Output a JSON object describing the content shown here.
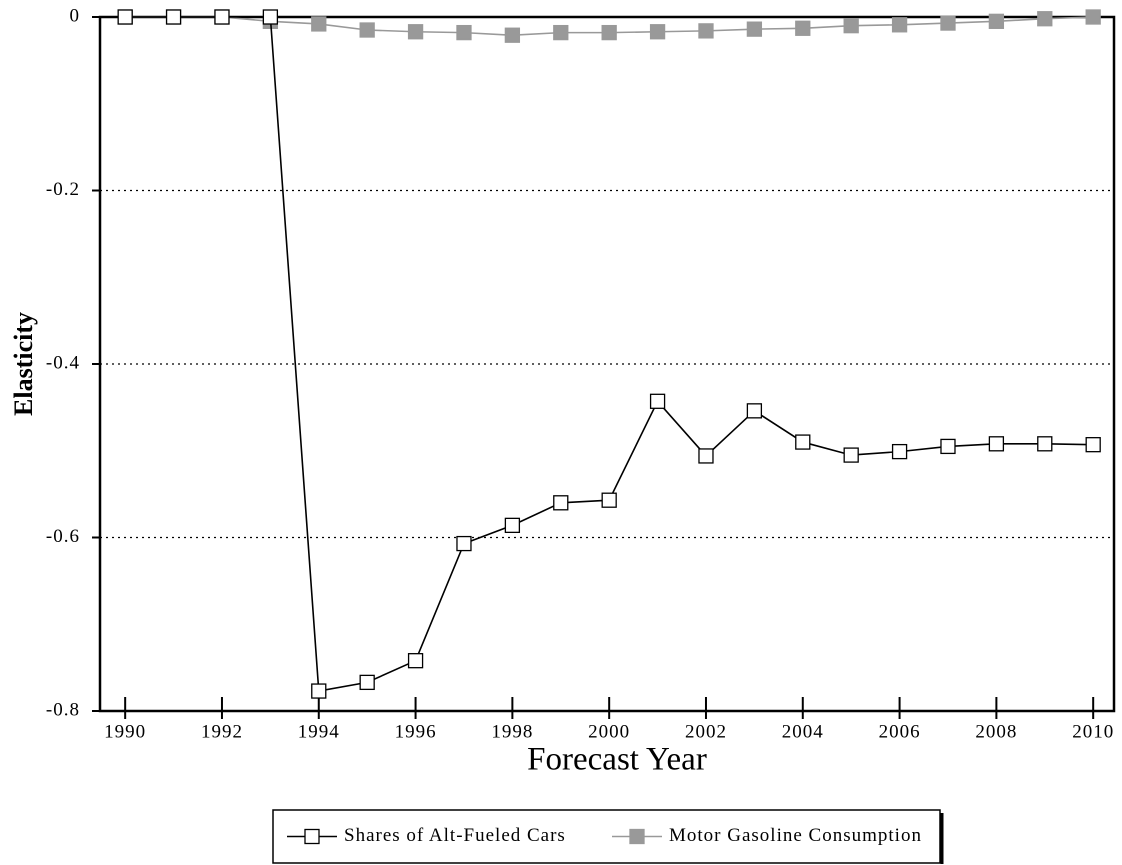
{
  "chart_data": {
    "type": "line",
    "x_label": "Forecast Year",
    "y_label": "Elasticity",
    "x": [
      1990,
      1991,
      1992,
      1993,
      1994,
      1995,
      1996,
      1997,
      1998,
      1999,
      2000,
      2001,
      2002,
      2003,
      2004,
      2005,
      2006,
      2007,
      2008,
      2009,
      2010
    ],
    "series": [
      {
        "name": "Shares of Alt-Fueled Cars",
        "color": "#000000",
        "marker": "open-square",
        "values": [
          0,
          0,
          0,
          0,
          -0.777,
          -0.767,
          -0.742,
          -0.607,
          -0.586,
          -0.56,
          -0.557,
          -0.443,
          -0.506,
          -0.454,
          -0.49,
          -0.505,
          -0.501,
          -0.495,
          -0.492,
          -0.492,
          -0.493
        ]
      },
      {
        "name": "Motor Gasoline Consumption",
        "color": "#999999",
        "marker": "square",
        "values": [
          0,
          0,
          0,
          -0.005,
          -0.008,
          -0.015,
          -0.017,
          -0.018,
          -0.021,
          -0.018,
          -0.018,
          -0.017,
          -0.016,
          -0.014,
          -0.013,
          -0.01,
          -0.009,
          -0.007,
          -0.005,
          -0.002,
          0
        ]
      }
    ],
    "xlim": [
      1989.48,
      2010.43
    ],
    "xticks": [
      1990,
      1992,
      1994,
      1996,
      1998,
      2000,
      2002,
      2004,
      2006,
      2008,
      2010
    ],
    "ylim": [
      -0.8,
      0
    ],
    "yticks": [
      0,
      -0.2,
      -0.4,
      -0.6,
      -0.8
    ],
    "grid": true,
    "legend": "bottom"
  }
}
